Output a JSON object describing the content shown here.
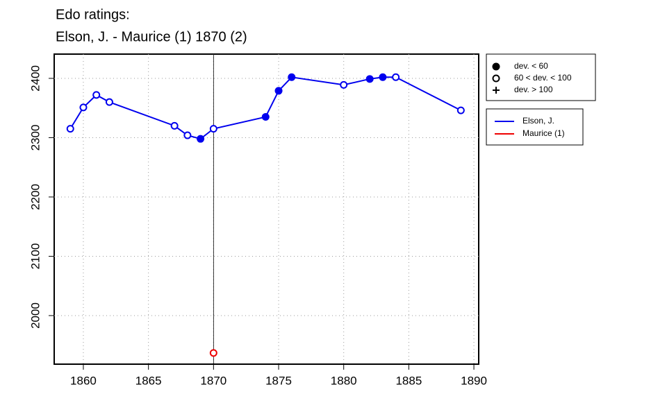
{
  "chart_data": {
    "type": "line",
    "title": "Edo ratings:",
    "subtitle": "Elson, J. - Maurice (1) 1870 (2)",
    "xlim": [
      1857.76,
      1890.37
    ],
    "ylim": [
      1918.1,
      2440.9
    ],
    "xticks": [
      1860,
      1865,
      1870,
      1875,
      1880,
      1885,
      1890
    ],
    "yticks": [
      2000,
      2100,
      2200,
      2300,
      2400
    ],
    "grid": true,
    "vline": 1870,
    "series": [
      {
        "name": "Elson, J.",
        "color": "#0000ee",
        "x": [
          1859,
          1860,
          1861,
          1862,
          1867,
          1868,
          1869,
          1870,
          1874,
          1875,
          1876,
          1880,
          1882,
          1883,
          1884,
          1889
        ],
        "values": [
          2315,
          2351,
          2372,
          2360,
          2320,
          2304,
          2298,
          2315,
          2335,
          2379,
          2402,
          2389,
          2399,
          2402,
          2402,
          2346
        ],
        "markers": [
          "open",
          "open",
          "open",
          "open",
          "open",
          "open",
          "filled",
          "open",
          "filled",
          "filled",
          "filled",
          "open",
          "filled",
          "filled",
          "open",
          "open"
        ]
      },
      {
        "name": "Maurice (1)",
        "color": "#ee0000",
        "x": [
          1870
        ],
        "values": [
          1937
        ],
        "markers": [
          "open"
        ]
      }
    ],
    "marker_legend": [
      {
        "label": "dev. < 60",
        "symbol": "filled"
      },
      {
        "label": "60 < dev. < 100",
        "symbol": "open"
      },
      {
        "label": "dev. > 100",
        "symbol": "plus"
      }
    ],
    "legend_position": "right"
  }
}
